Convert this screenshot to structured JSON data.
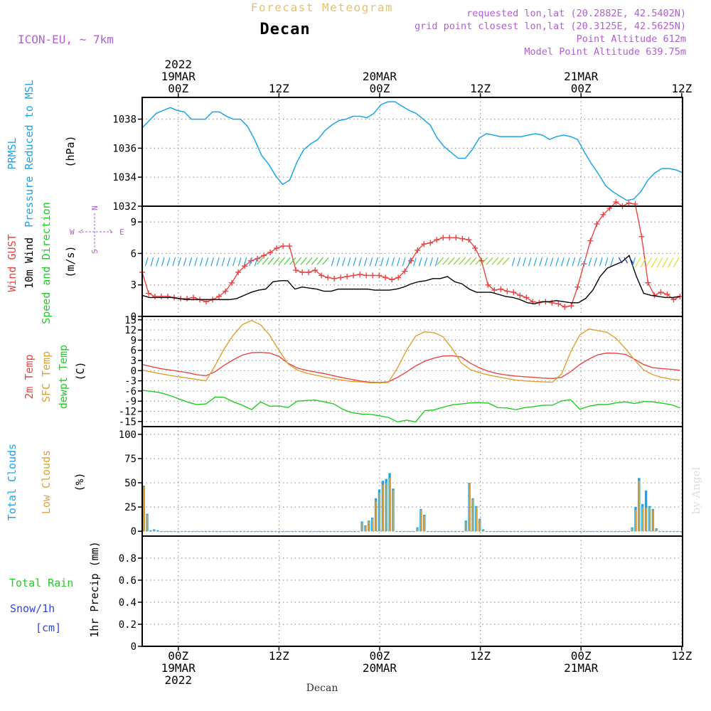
{
  "header": {
    "main_title": "Forecast Meteogram",
    "location": "Decan",
    "model": "ICON-EU, ~ 7km",
    "requested": "requested lon,lat (20.2882E, 42.5402N)",
    "gridpoint": "grid point closest lon,lat (20.3125E, 42.5625N)",
    "point_alt": "Point Altitude 612m",
    "model_alt": "Model Point Altitude 639.75m",
    "footer_location": "Decan",
    "watermark": "by Angel"
  },
  "colors": {
    "pressure": "#1ba5e8",
    "gust": "#e84545",
    "wind10m": "#000000",
    "temp2m": "#e84545",
    "sfctemp": "#e0a030",
    "dewpt": "#22cc22",
    "total_clouds": "#1ba5e8",
    "low_clouds": "#e0a030",
    "rain": "#22cc22",
    "snow": "#3344dd",
    "meta": "#b060d0",
    "title": "#e8c070"
  },
  "time_axis": {
    "top_labels": [
      {
        "hour": 0,
        "lines": [
          "2022",
          "19MAR",
          "00Z"
        ]
      },
      {
        "hour": 12,
        "lines": [
          "12Z"
        ]
      },
      {
        "hour": 24,
        "lines": [
          "20MAR",
          "00Z"
        ]
      },
      {
        "hour": 36,
        "lines": [
          "12Z"
        ]
      },
      {
        "hour": 48,
        "lines": [
          "21MAR",
          "00Z"
        ]
      },
      {
        "hour": 60,
        "lines": [
          "12Z"
        ]
      }
    ],
    "bottom_labels": [
      {
        "hour": 0,
        "lines": [
          "00Z",
          "19MAR",
          "2022"
        ]
      },
      {
        "hour": 12,
        "lines": [
          "12Z"
        ]
      },
      {
        "hour": 24,
        "lines": [
          "00Z",
          "20MAR"
        ]
      },
      {
        "hour": 36,
        "lines": [
          "12Z"
        ]
      },
      {
        "hour": 48,
        "lines": [
          "00Z",
          "21MAR"
        ]
      },
      {
        "hour": 60,
        "lines": [
          "12Z"
        ]
      }
    ]
  },
  "chart_data": [
    {
      "type": "line",
      "panel": "pressure",
      "left_labels": [
        {
          "text": "PRMSL",
          "color": "#1ba5e8"
        },
        {
          "text": "Pressure Reduced to MSL",
          "color": "#1ba5e8"
        }
      ],
      "unit": "(hPa)",
      "ylim": [
        1032,
        1039.5
      ],
      "yticks": [
        "1032",
        "1034",
        "1036",
        "1038"
      ],
      "series": [
        {
          "values": [
            1037.4,
            1037.9,
            1038.4,
            1038.6,
            1038.8,
            1038.6,
            1038.5,
            1038.0,
            1038.0,
            1038.0,
            1038.5,
            1038.5,
            1038.2,
            1038.0,
            1038.0,
            1037.5,
            1036.6,
            1035.5,
            1034.9,
            1034.1,
            1033.5,
            1033.8,
            1035.0,
            1035.9,
            1036.3,
            1036.6,
            1037.2,
            1037.6,
            1037.9,
            1038.0,
            1038.2,
            1038.2,
            1038.1,
            1038.4,
            1039.0,
            1039.2,
            1039.2,
            1038.9,
            1038.6,
            1038.4,
            1038.0,
            1037.6,
            1036.7,
            1036.1,
            1035.7,
            1035.3,
            1035.3,
            1035.9,
            1036.7,
            1037.0,
            1036.9,
            1036.8,
            1036.8,
            1036.8,
            1036.8,
            1036.9,
            1037.0,
            1036.9,
            1036.6,
            1036.8,
            1036.9,
            1036.8,
            1036.6,
            1035.7,
            1034.9,
            1034.2,
            1033.4,
            1033.0,
            1032.7,
            1032.4,
            1032.5,
            1033.0,
            1033.8,
            1034.3,
            1034.6,
            1034.6,
            1034.5,
            1034.3
          ]
        }
      ]
    },
    {
      "type": "line",
      "panel": "wind",
      "left_labels": [
        {
          "text": "Wind GUST",
          "color": "#e84545"
        },
        {
          "text": "10m Wind",
          "color": "#000000"
        },
        {
          "text": "Speed and Direction",
          "color": "#22cc22"
        }
      ],
      "unit": "(m/s)",
      "compass": {
        "n": "N",
        "s": "S",
        "w": "W",
        "e": "E"
      },
      "ylim": [
        0,
        10.5
      ],
      "yticks": [
        "0",
        "3",
        "6",
        "9"
      ],
      "series": [
        {
          "name": "Wind GUST",
          "values": [
            4.2,
            2.2,
            1.9,
            1.9,
            1.9,
            1.8,
            1.7,
            1.7,
            1.8,
            1.6,
            1.4,
            1.6,
            1.9,
            2.4,
            3.2,
            4.2,
            4.8,
            5.3,
            5.5,
            5.8,
            6.1,
            6.5,
            6.7,
            6.7,
            4.4,
            4.2,
            4.2,
            4.4,
            3.9,
            3.7,
            3.6,
            3.7,
            3.8,
            3.9,
            4.0,
            3.9,
            3.9,
            3.9,
            3.7,
            3.5,
            3.7,
            4.3,
            5.3,
            6.3,
            6.9,
            7.0,
            7.3,
            7.5,
            7.5,
            7.5,
            7.4,
            7.3,
            6.5,
            5.3,
            3.0,
            2.5,
            2.6,
            2.4,
            2.3,
            2.0,
            1.8,
            1.4,
            1.3,
            1.4,
            1.3,
            1.2,
            0.9,
            1.0,
            2.8,
            5.0,
            7.2,
            8.8,
            9.7,
            10.3,
            10.9,
            10.5,
            10.8,
            10.7,
            7.6,
            3.2,
            2.0,
            2.3,
            2.1,
            1.6,
            1.9
          ]
        },
        {
          "name": "10m Wind",
          "values": [
            2.0,
            1.8,
            1.8,
            1.8,
            1.8,
            1.7,
            1.6,
            1.6,
            1.6,
            1.6,
            1.6,
            1.6,
            1.6,
            1.7,
            2.0,
            2.3,
            2.5,
            2.6,
            3.3,
            3.4,
            3.4,
            2.6,
            2.8,
            2.7,
            2.6,
            2.4,
            2.4,
            2.6,
            2.6,
            2.6,
            2.6,
            2.6,
            2.5,
            2.5,
            2.5,
            2.6,
            2.8,
            3.1,
            3.3,
            3.4,
            3.6,
            3.6,
            3.8,
            3.3,
            3.1,
            2.6,
            2.3,
            2.3,
            2.3,
            2.1,
            1.9,
            1.8,
            1.6,
            1.3,
            1.2,
            1.4,
            1.4,
            1.5,
            1.4,
            1.3,
            1.3,
            1.7,
            2.5,
            3.8,
            4.6,
            4.9,
            5.2,
            5.8,
            3.8,
            2.2,
            2.0,
            1.9,
            1.8,
            1.8,
            1.9
          ]
        }
      ]
    },
    {
      "type": "line",
      "panel": "temperature",
      "left_labels": [
        {
          "text": "2m Temp",
          "color": "#e84545"
        },
        {
          "text": "SFC Temp",
          "color": "#e0a030"
        },
        {
          "text": "dewpt Temp",
          "color": "#22cc22"
        }
      ],
      "unit": "(C)",
      "ylim": [
        -16.5,
        16
      ],
      "yticks": [
        "-15",
        "-12",
        "-9",
        "-6",
        "-3",
        "0",
        "3",
        "6",
        "9",
        "12",
        "15"
      ],
      "series": [
        {
          "name": "2m Temp",
          "values": [
            1.8,
            1.2,
            0.6,
            0.2,
            -0.2,
            -0.6,
            -1.2,
            -1.5,
            -0.3,
            1.6,
            3.2,
            4.6,
            5.3,
            5.4,
            5.2,
            4.2,
            2.2,
            0.8,
            0.1,
            -0.4,
            -0.9,
            -1.5,
            -2.1,
            -2.6,
            -3.1,
            -3.4,
            -3.5,
            -3.3,
            -2.0,
            -0.4,
            1.4,
            2.8,
            3.7,
            4.3,
            4.4,
            4.0,
            2.2,
            0.8,
            -0.2,
            -0.9,
            -1.3,
            -1.6,
            -1.8,
            -2.0,
            -2.2,
            -2.3,
            -2.0,
            -0.3,
            1.8,
            3.4,
            4.7,
            5.2,
            5.1,
            4.8,
            3.4,
            1.8,
            0.9,
            0.6,
            0.4,
            0.1
          ]
        },
        {
          "name": "SFC Temp",
          "values": [
            0.2,
            -0.4,
            -0.9,
            -1.4,
            -1.8,
            -2.2,
            -2.6,
            -3.0,
            1.5,
            6.5,
            10.5,
            13.6,
            14.8,
            13.5,
            10.4,
            6.0,
            2.0,
            0.2,
            -0.7,
            -1.3,
            -1.9,
            -2.4,
            -2.8,
            -3.2,
            -3.3,
            -3.6,
            -3.6,
            -3.5,
            0.8,
            6.0,
            10.2,
            11.5,
            11.2,
            10.0,
            6.5,
            2.3,
            0.3,
            -0.6,
            -1.3,
            -1.8,
            -2.3,
            -2.8,
            -3.0,
            -3.2,
            -3.3,
            -3.4,
            -1.0,
            5.5,
            10.5,
            12.3,
            11.8,
            11.3,
            9.5,
            6.5,
            3.2,
            0.2,
            -1.2,
            -2.0,
            -2.5,
            -2.8
          ]
        },
        {
          "name": "dewpt Temp",
          "values": [
            -5.8,
            -6.1,
            -6.5,
            -7.3,
            -8.3,
            -9.3,
            -10.0,
            -9.8,
            -7.8,
            -7.9,
            -9.2,
            -10.2,
            -11.5,
            -9.2,
            -10.5,
            -10.4,
            -10.9,
            -9.0,
            -8.8,
            -8.7,
            -9.2,
            -9.8,
            -11.4,
            -12.4,
            -12.8,
            -12.9,
            -13.3,
            -13.8,
            -15.1,
            -14.6,
            -15.1,
            -11.8,
            -11.6,
            -10.8,
            -10.1,
            -9.8,
            -9.5,
            -9.4,
            -9.6,
            -10.9,
            -11.0,
            -11.5,
            -10.9,
            -10.6,
            -10.2,
            -10.2,
            -8.9,
            -8.6,
            -11.4,
            -10.5,
            -10.0,
            -10.0,
            -9.5,
            -9.2,
            -9.7,
            -9.1,
            -9.2,
            -9.6,
            -10.0,
            -11.0
          ]
        }
      ]
    },
    {
      "type": "bar",
      "panel": "clouds",
      "left_labels": [
        {
          "text": "Total Clouds",
          "color": "#1ba5e8"
        },
        {
          "text": "Low Clouds",
          "color": "#e0a030"
        }
      ],
      "unit": "(%)",
      "ylim": [
        -5,
        108
      ],
      "yticks": [
        "0",
        "25",
        "50",
        "75",
        "100"
      ],
      "series": [
        {
          "name": "Total Clouds",
          "values": [
            47,
            18,
            1,
            2,
            1,
            0,
            0,
            0,
            0,
            0,
            0,
            0,
            0,
            0,
            0,
            0,
            0,
            0,
            0,
            0,
            0,
            0,
            0,
            0,
            0,
            0,
            0,
            0,
            0,
            0,
            0,
            0,
            0,
            0,
            0,
            0,
            0,
            0,
            0,
            0,
            0,
            0,
            0,
            0,
            0,
            0,
            0,
            0,
            0,
            0,
            0,
            0,
            0,
            0,
            0,
            0,
            0,
            0,
            0,
            0,
            0,
            0,
            0,
            10,
            6,
            11,
            14,
            34,
            43,
            52,
            54,
            60,
            44,
            0,
            0,
            0,
            0,
            0,
            0,
            4,
            23,
            17,
            0,
            0,
            0,
            0,
            0,
            0,
            0,
            0,
            0,
            0,
            0,
            11,
            50,
            34,
            26,
            13,
            2,
            0,
            0,
            0,
            0,
            0,
            0,
            0,
            0,
            0,
            0,
            0,
            0,
            0,
            0,
            0,
            0,
            0,
            0,
            0,
            0,
            0,
            0,
            0,
            0,
            0,
            0,
            0,
            0,
            0,
            0,
            0,
            0,
            0,
            0,
            0,
            0,
            0,
            0,
            0,
            0,
            0,
            0,
            4,
            25,
            55,
            28,
            42,
            26,
            23,
            3,
            0,
            0,
            0,
            0,
            0,
            0,
            0
          ]
        },
        {
          "name": "Low Clouds",
          "values": [
            46,
            17,
            0,
            1,
            0,
            0,
            0,
            0,
            0,
            0,
            0,
            0,
            0,
            0,
            0,
            0,
            0,
            0,
            0,
            0,
            0,
            0,
            0,
            0,
            0,
            0,
            0,
            0,
            0,
            0,
            0,
            0,
            0,
            0,
            0,
            0,
            0,
            0,
            0,
            0,
            0,
            0,
            0,
            0,
            0,
            0,
            0,
            0,
            0,
            0,
            0,
            0,
            0,
            0,
            0,
            0,
            0,
            0,
            0,
            0,
            0,
            0,
            0,
            9,
            5,
            10,
            13,
            31,
            40,
            48,
            50,
            55,
            42,
            0,
            0,
            0,
            0,
            0,
            0,
            3,
            22,
            16,
            0,
            0,
            0,
            0,
            0,
            0,
            0,
            0,
            0,
            0,
            0,
            10,
            49,
            33,
            25,
            12,
            1,
            0,
            0,
            0,
            0,
            0,
            0,
            0,
            0,
            0,
            0,
            0,
            0,
            0,
            0,
            0,
            0,
            0,
            0,
            0,
            0,
            0,
            0,
            0,
            0,
            0,
            0,
            0,
            0,
            0,
            0,
            0,
            0,
            0,
            0,
            0,
            0,
            0,
            0,
            0,
            0,
            0,
            0,
            3,
            22,
            52,
            25,
            24,
            25,
            22,
            2,
            0,
            0,
            0,
            0,
            0,
            0,
            0
          ]
        }
      ]
    },
    {
      "type": "bar",
      "panel": "precip",
      "left_labels": [
        {
          "text": "Total  Rain",
          "color": "#22cc22"
        },
        {
          "text": "Snow/1h",
          "color": "#3344dd"
        },
        {
          "text": "[cm]",
          "color": "#3344dd"
        }
      ],
      "unit": "1hr Precip (mm)",
      "ylim": [
        0,
        1.0
      ],
      "yticks": [
        "0",
        "0.2",
        "0.4",
        "0.6",
        "0.8"
      ],
      "series": [
        {
          "name": "Total Rain",
          "values": []
        }
      ]
    }
  ]
}
